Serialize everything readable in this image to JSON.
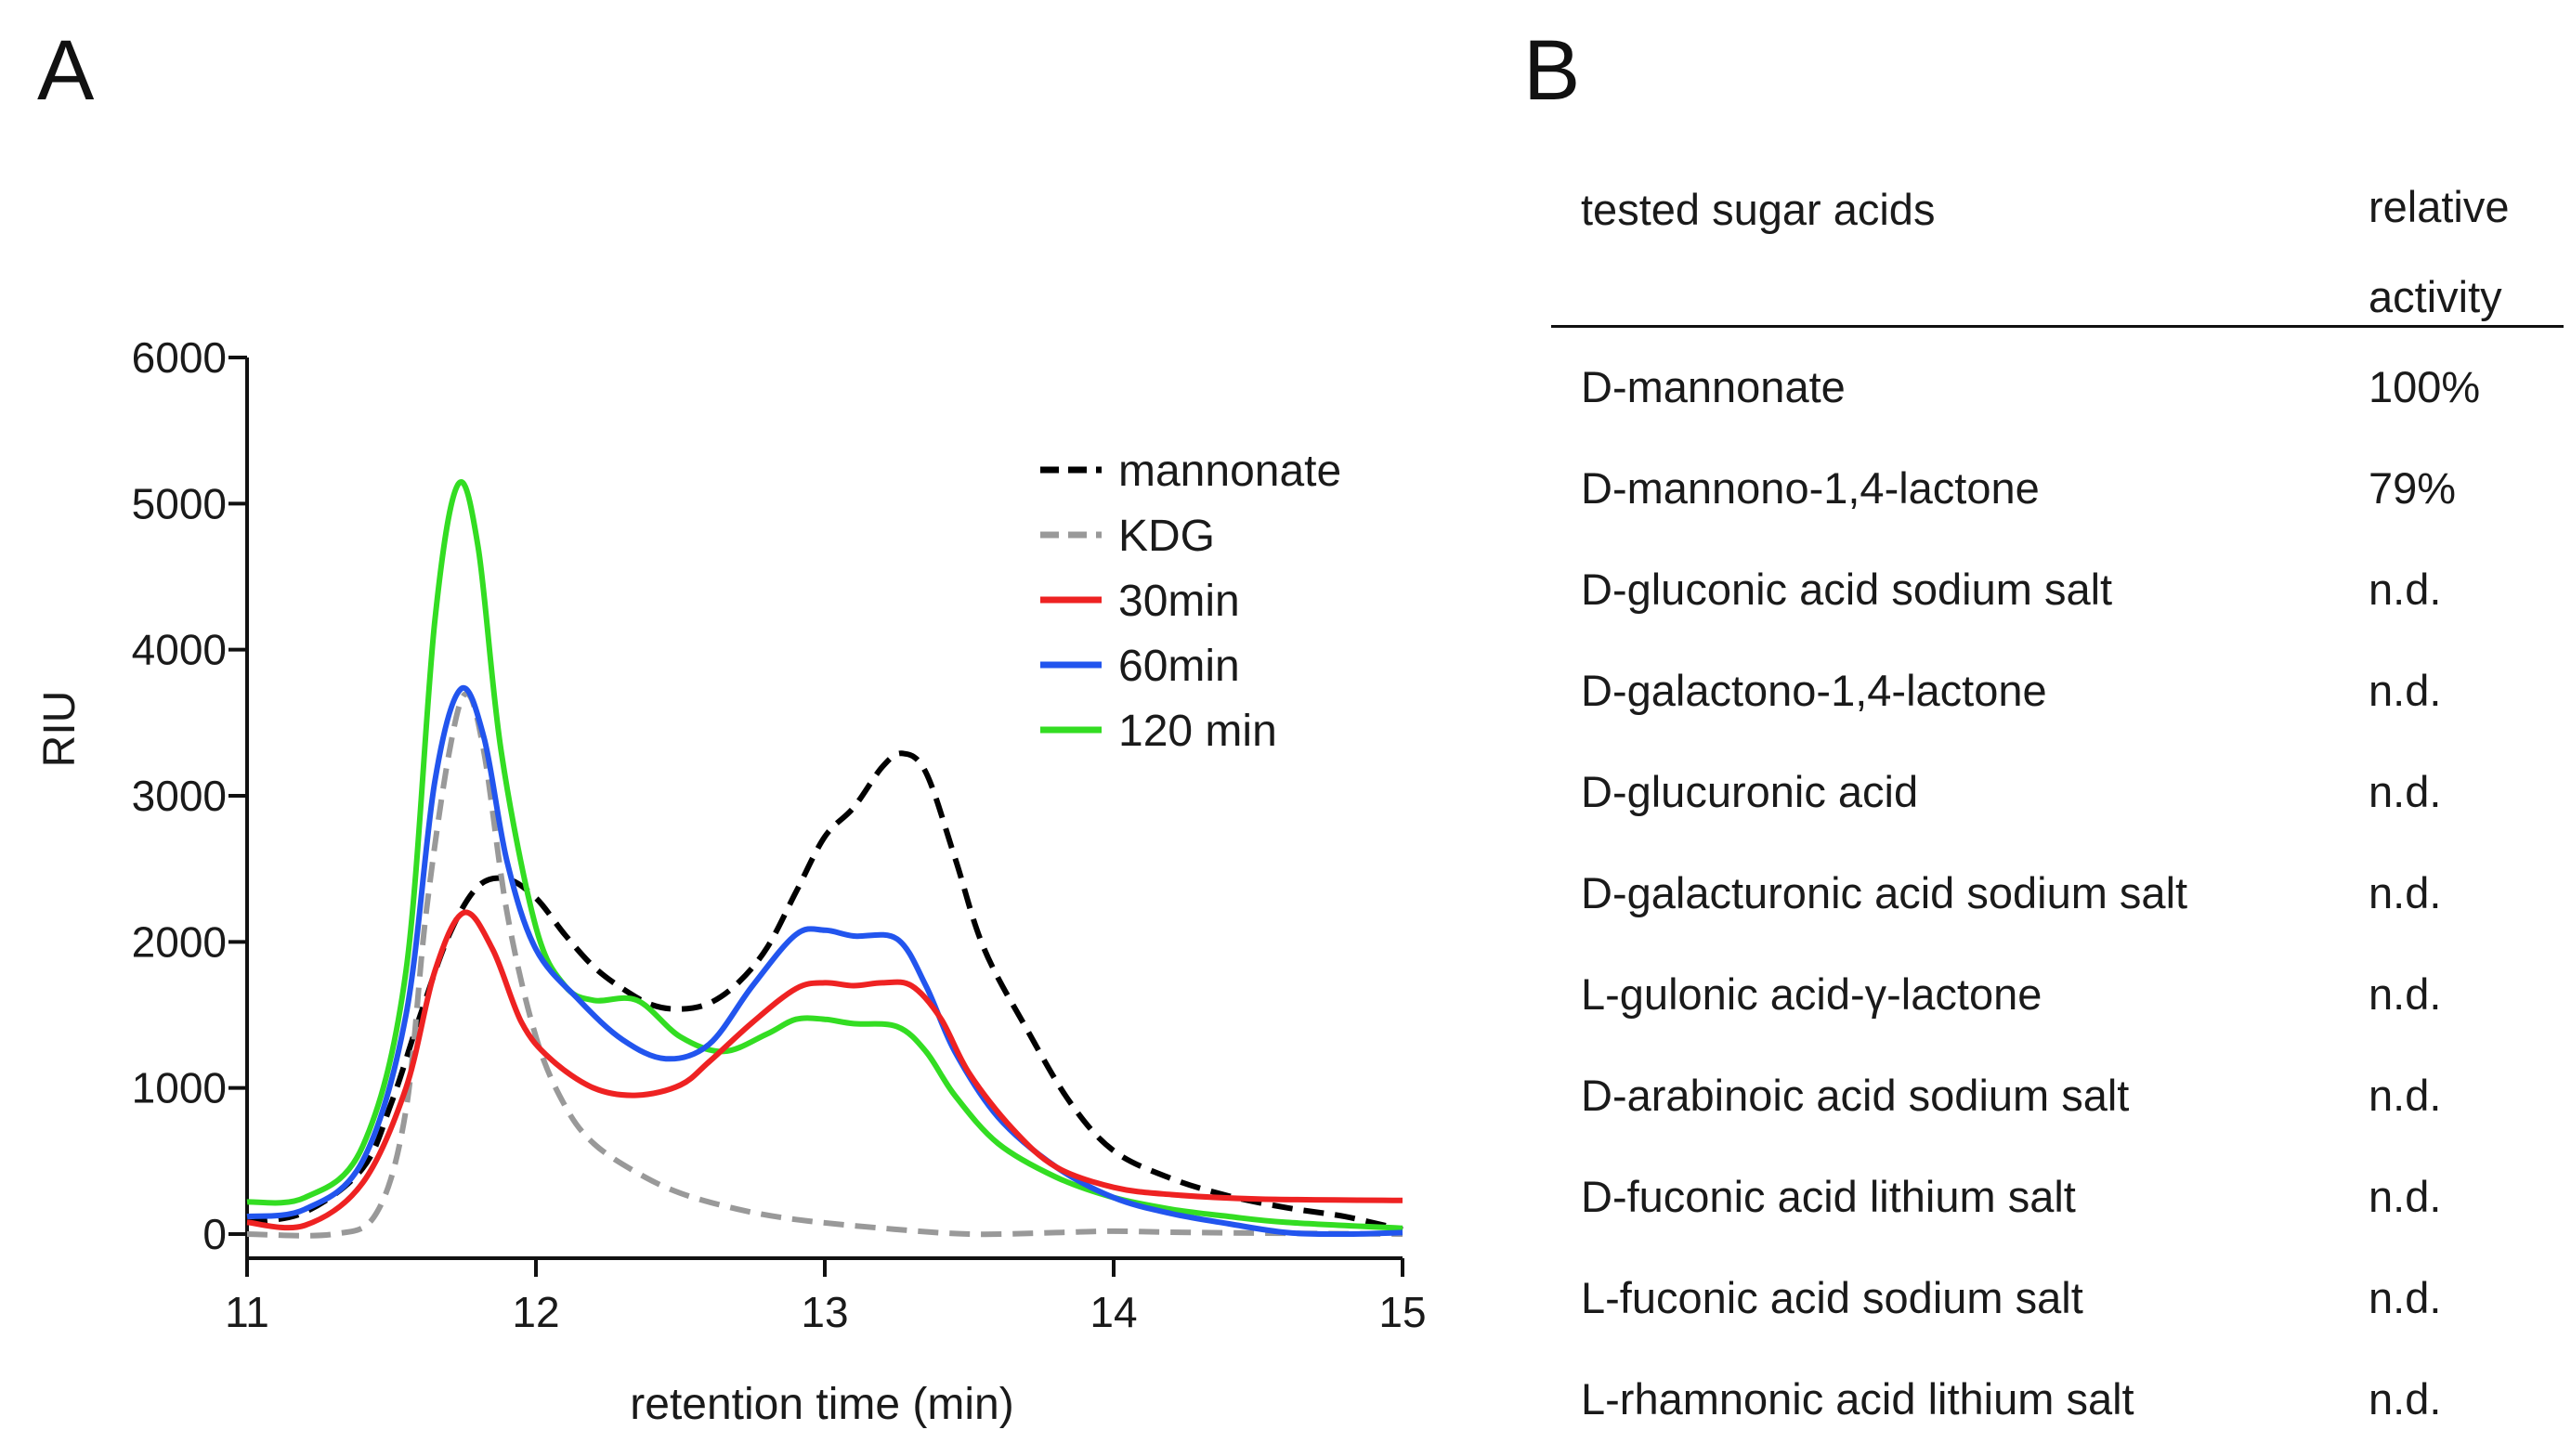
{
  "panel_a_label": "A",
  "panel_b_label": "B",
  "chart_data": {
    "type": "line",
    "title": "",
    "xlabel": "retention time (min)",
    "ylabel": "RIU",
    "xlim": [
      11,
      15
    ],
    "ylim": [
      0,
      6000
    ],
    "xticks": [
      11,
      12,
      13,
      14,
      15
    ],
    "yticks": [
      0,
      1000,
      2000,
      3000,
      4000,
      5000,
      6000
    ],
    "legend_position": "top-right",
    "series": [
      {
        "name": "mannonate",
        "color": "#000000",
        "dashed": true,
        "points": [
          [
            11.0,
            80
          ],
          [
            11.2,
            150
          ],
          [
            11.4,
            450
          ],
          [
            11.5,
            900
          ],
          [
            11.6,
            1500
          ],
          [
            11.7,
            2050
          ],
          [
            11.8,
            2380
          ],
          [
            11.9,
            2430
          ],
          [
            12.0,
            2300
          ],
          [
            12.1,
            2050
          ],
          [
            12.2,
            1830
          ],
          [
            12.3,
            1680
          ],
          [
            12.4,
            1570
          ],
          [
            12.5,
            1540
          ],
          [
            12.6,
            1580
          ],
          [
            12.7,
            1720
          ],
          [
            12.8,
            1960
          ],
          [
            12.9,
            2340
          ],
          [
            13.0,
            2720
          ],
          [
            13.1,
            2920
          ],
          [
            13.2,
            3200
          ],
          [
            13.27,
            3290
          ],
          [
            13.35,
            3160
          ],
          [
            13.45,
            2580
          ],
          [
            13.55,
            1960
          ],
          [
            13.7,
            1400
          ],
          [
            13.85,
            900
          ],
          [
            14.0,
            570
          ],
          [
            14.2,
            380
          ],
          [
            14.4,
            260
          ],
          [
            14.6,
            180
          ],
          [
            14.8,
            120
          ],
          [
            15.0,
            30
          ]
        ]
      },
      {
        "name": "KDG",
        "color": "#999999",
        "dashed": true,
        "points": [
          [
            11.0,
            0
          ],
          [
            11.3,
            0
          ],
          [
            11.45,
            150
          ],
          [
            11.55,
            850
          ],
          [
            11.62,
            2200
          ],
          [
            11.7,
            3300
          ],
          [
            11.76,
            3700
          ],
          [
            11.82,
            3300
          ],
          [
            11.9,
            2200
          ],
          [
            12.0,
            1350
          ],
          [
            12.1,
            880
          ],
          [
            12.2,
            620
          ],
          [
            12.35,
            420
          ],
          [
            12.5,
            280
          ],
          [
            12.7,
            170
          ],
          [
            12.9,
            100
          ],
          [
            13.2,
            40
          ],
          [
            13.5,
            0
          ],
          [
            13.8,
            10
          ],
          [
            14.0,
            20
          ],
          [
            14.3,
            10
          ],
          [
            15.0,
            0
          ]
        ]
      },
      {
        "name": "30min",
        "color": "#ee2222",
        "dashed": false,
        "points": [
          [
            11.0,
            80
          ],
          [
            11.2,
            60
          ],
          [
            11.4,
            350
          ],
          [
            11.55,
            1000
          ],
          [
            11.65,
            1800
          ],
          [
            11.75,
            2200
          ],
          [
            11.85,
            1950
          ],
          [
            11.95,
            1450
          ],
          [
            12.05,
            1200
          ],
          [
            12.2,
            1000
          ],
          [
            12.35,
            950
          ],
          [
            12.5,
            1020
          ],
          [
            12.6,
            1180
          ],
          [
            12.75,
            1450
          ],
          [
            12.9,
            1680
          ],
          [
            13.0,
            1720
          ],
          [
            13.1,
            1700
          ],
          [
            13.2,
            1720
          ],
          [
            13.3,
            1700
          ],
          [
            13.4,
            1480
          ],
          [
            13.5,
            1100
          ],
          [
            13.65,
            720
          ],
          [
            13.8,
            460
          ],
          [
            14.0,
            320
          ],
          [
            14.2,
            270
          ],
          [
            14.5,
            240
          ],
          [
            15.0,
            230
          ]
        ]
      },
      {
        "name": "60min",
        "color": "#2255ee",
        "dashed": false,
        "points": [
          [
            11.0,
            120
          ],
          [
            11.2,
            170
          ],
          [
            11.4,
            500
          ],
          [
            11.55,
            1500
          ],
          [
            11.65,
            3100
          ],
          [
            11.74,
            3730
          ],
          [
            11.82,
            3400
          ],
          [
            11.9,
            2550
          ],
          [
            12.0,
            1950
          ],
          [
            12.15,
            1600
          ],
          [
            12.3,
            1330
          ],
          [
            12.45,
            1200
          ],
          [
            12.6,
            1300
          ],
          [
            12.75,
            1700
          ],
          [
            12.9,
            2050
          ],
          [
            13.0,
            2080
          ],
          [
            13.1,
            2040
          ],
          [
            13.25,
            2020
          ],
          [
            13.35,
            1700
          ],
          [
            13.45,
            1250
          ],
          [
            13.6,
            800
          ],
          [
            13.8,
            460
          ],
          [
            14.0,
            250
          ],
          [
            14.2,
            140
          ],
          [
            14.4,
            70
          ],
          [
            14.6,
            10
          ],
          [
            14.8,
            0
          ],
          [
            15.0,
            10
          ]
        ]
      },
      {
        "name": "120 min",
        "color": "#33dd22",
        "dashed": false,
        "points": [
          [
            11.0,
            220
          ],
          [
            11.2,
            250
          ],
          [
            11.4,
            600
          ],
          [
            11.55,
            1800
          ],
          [
            11.65,
            4200
          ],
          [
            11.73,
            5130
          ],
          [
            11.8,
            4700
          ],
          [
            11.88,
            3300
          ],
          [
            12.0,
            2100
          ],
          [
            12.1,
            1700
          ],
          [
            12.2,
            1600
          ],
          [
            12.35,
            1600
          ],
          [
            12.5,
            1350
          ],
          [
            12.65,
            1250
          ],
          [
            12.8,
            1370
          ],
          [
            12.9,
            1470
          ],
          [
            13.0,
            1470
          ],
          [
            13.1,
            1440
          ],
          [
            13.25,
            1420
          ],
          [
            13.35,
            1250
          ],
          [
            13.45,
            950
          ],
          [
            13.6,
            620
          ],
          [
            13.8,
            390
          ],
          [
            14.0,
            250
          ],
          [
            14.2,
            170
          ],
          [
            14.4,
            120
          ],
          [
            14.6,
            80
          ],
          [
            15.0,
            40
          ]
        ]
      }
    ]
  },
  "table": {
    "header_name": "tested sugar acids",
    "header_activity_line1": "relative",
    "header_activity_line2": "activity",
    "rows": [
      {
        "name": "D-mannonate",
        "activity": "100%"
      },
      {
        "name": "D-mannono-1,4-lactone",
        "activity": "79%"
      },
      {
        "name": "D-gluconic acid sodium salt",
        "activity": "n.d."
      },
      {
        "name": "D-galactono-1,4-lactone",
        "activity": "n.d."
      },
      {
        "name": "D-glucuronic acid",
        "activity": "n.d."
      },
      {
        "name": "D-galacturonic acid sodium salt",
        "activity": "n.d."
      },
      {
        "name": "L-gulonic acid-γ-lactone",
        "activity": "n.d."
      },
      {
        "name": "D-arabinoic acid sodium salt",
        "activity": "n.d."
      },
      {
        "name": "D-fuconic acid lithium salt",
        "activity": "n.d."
      },
      {
        "name": "L-fuconic acid sodium salt",
        "activity": "n.d."
      },
      {
        "name": "L-rhamnonic acid lithium salt",
        "activity": "n.d."
      }
    ]
  }
}
